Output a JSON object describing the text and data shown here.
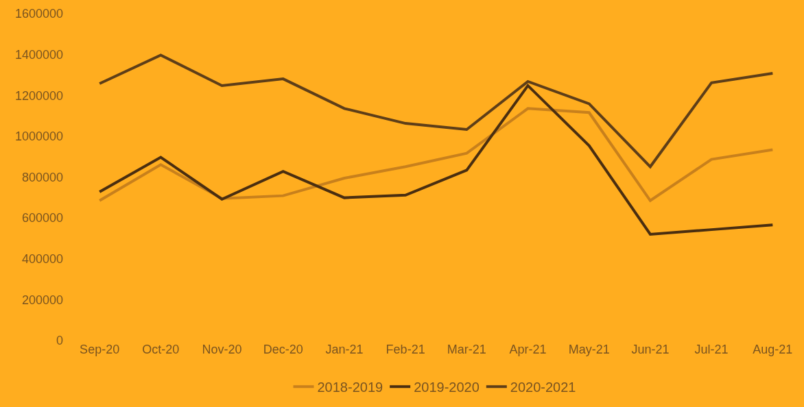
{
  "chart_data": {
    "type": "line",
    "categories": [
      "Sep-20",
      "Oct-20",
      "Nov-20",
      "Dec-20",
      "Jan-21",
      "Feb-21",
      "Mar-21",
      "Apr-21",
      "May-21",
      "Jun-21",
      "Jul-21",
      "Aug-21"
    ],
    "series": [
      {
        "name": "2018-2019",
        "color": "#c8801c",
        "values": [
          685000,
          861000,
          695000,
          709000,
          795000,
          851000,
          917000,
          1136000,
          1116000,
          685000,
          887000,
          934000
        ]
      },
      {
        "name": "2019-2020",
        "color": "#4a2e10",
        "values": [
          728000,
          897000,
          692000,
          828000,
          699000,
          712000,
          834000,
          1248000,
          954000,
          520000,
          543000,
          566000
        ]
      },
      {
        "name": "2020-2021",
        "color": "#5e3e18",
        "values": [
          1258000,
          1397000,
          1248000,
          1281000,
          1136000,
          1063000,
          1033000,
          1268000,
          1159000,
          851000,
          1262000,
          1308000
        ]
      }
    ],
    "ylim": [
      0,
      1600000
    ],
    "yticks": [
      0,
      200000,
      400000,
      600000,
      800000,
      1000000,
      1200000,
      1400000,
      1600000
    ],
    "grid": false,
    "legend": "bottom",
    "marker": "none",
    "line_style": "solid"
  }
}
